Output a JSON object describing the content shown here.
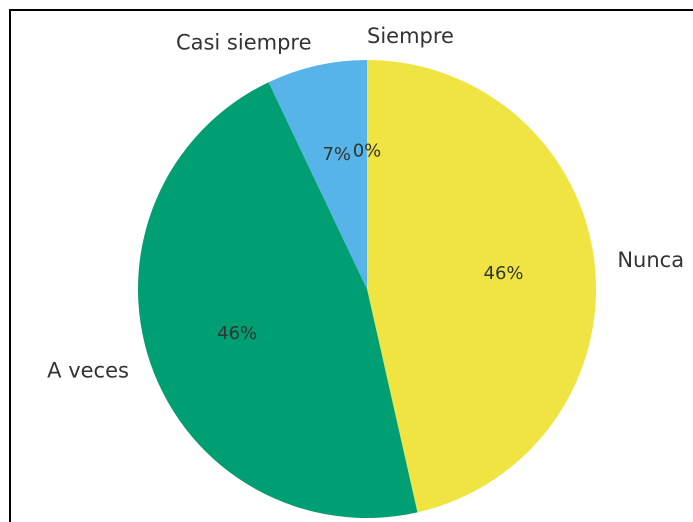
{
  "chart_data": {
    "type": "pie",
    "categories": [
      "Nunca",
      "A veces",
      "Casi siempre",
      "Siempre"
    ],
    "values": [
      46,
      46,
      7,
      0
    ],
    "value_labels": [
      "46%",
      "46%",
      "7%",
      "0%"
    ],
    "colors": [
      "#f0e442",
      "#009e73",
      "#56b4e9",
      "#e69f00"
    ]
  }
}
